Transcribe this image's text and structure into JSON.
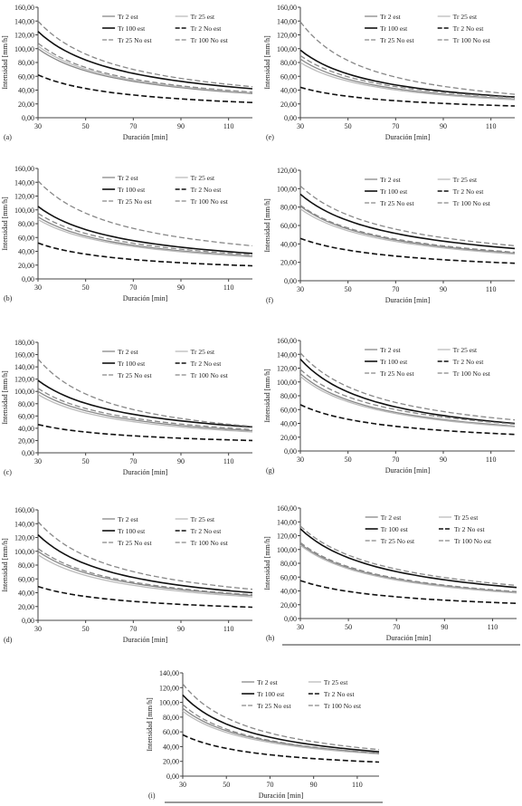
{
  "figure": {
    "legend": {
      "tr2": "Tr 2 est",
      "tr25": "Tr 25 est",
      "tr100": "Tr 100 est",
      "tr2no": "Tr 2 No est",
      "tr25no": "Tr 25 No est",
      "tr100no": "Tr 100 No est"
    },
    "xlabel": "Duración [min]",
    "ylabel": "Intensidad [mm/h]"
  },
  "chart_data": [
    {
      "panel_label": "(a)",
      "type": "line",
      "xlabel": "Duración [min]",
      "ylabel": "Intensidad [mm/h]",
      "xlim": [
        30,
        120
      ],
      "xticks": [
        30,
        50,
        70,
        90,
        110
      ],
      "ylim": [
        0,
        160
      ],
      "yticks": [
        "0,00",
        "20,00",
        "40,00",
        "60,00",
        "80,00",
        "100,00",
        "120,00",
        "140,00",
        "160,00"
      ],
      "x": [
        30,
        120
      ],
      "series": [
        {
          "name": "Tr 2 est",
          "values": [
            100,
            35
          ],
          "color": "#888888",
          "dash": "solid"
        },
        {
          "name": "Tr 25 est",
          "values": [
            104,
            36
          ],
          "color": "#bbbbbb",
          "dash": "solid"
        },
        {
          "name": "Tr 100 est",
          "values": [
            125,
            42
          ],
          "color": "#111111",
          "dash": "solid"
        },
        {
          "name": "Tr 2 No est",
          "values": [
            62,
            22
          ],
          "color": "#111111",
          "dash": "dashed"
        },
        {
          "name": "Tr 25 No est",
          "values": [
            108,
            37
          ],
          "color": "#888888",
          "dash": "dashed"
        },
        {
          "name": "Tr 100 No est",
          "values": [
            140,
            45
          ],
          "color": "#888888",
          "dash": "dashed"
        }
      ]
    },
    {
      "panel_label": "(b)",
      "type": "line",
      "xlabel": "Duración [min]",
      "ylabel": "Intensidad [mm/h]",
      "xlim": [
        30,
        120
      ],
      "xticks": [
        30,
        50,
        70,
        90,
        110
      ],
      "ylim": [
        0,
        160
      ],
      "yticks": [
        "0,00",
        "20,00",
        "40,00",
        "60,00",
        "80,00",
        "100,00",
        "120,00",
        "140,00",
        "160,00"
      ],
      "x": [
        30,
        120
      ],
      "series": [
        {
          "name": "Tr 2 est",
          "values": [
            90,
            33
          ],
          "color": "#888888",
          "dash": "solid"
        },
        {
          "name": "Tr 25 est",
          "values": [
            86,
            32
          ],
          "color": "#bbbbbb",
          "dash": "solid"
        },
        {
          "name": "Tr 100 est",
          "values": [
            105,
            37
          ],
          "color": "#111111",
          "dash": "solid"
        },
        {
          "name": "Tr 2 No est",
          "values": [
            52,
            19
          ],
          "color": "#111111",
          "dash": "dashed"
        },
        {
          "name": "Tr 25 No est",
          "values": [
            95,
            35
          ],
          "color": "#888888",
          "dash": "dashed"
        },
        {
          "name": "Tr 100 No est",
          "values": [
            142,
            48
          ],
          "color": "#888888",
          "dash": "dashed"
        }
      ]
    },
    {
      "panel_label": "(c)",
      "type": "line",
      "xlabel": "Duración [min]",
      "ylabel": "Intensidad [mm/h]",
      "xlim": [
        30,
        120
      ],
      "xticks": [
        30,
        50,
        70,
        90,
        110
      ],
      "ylim": [
        0,
        180
      ],
      "yticks": [
        "0,00",
        "20,00",
        "40,00",
        "60,00",
        "80,00",
        "100,00",
        "120,00",
        "140,00",
        "160,00",
        "180,00"
      ],
      "x": [
        30,
        120
      ],
      "series": [
        {
          "name": "Tr 2 est",
          "values": [
            100,
            36
          ],
          "color": "#888888",
          "dash": "solid"
        },
        {
          "name": "Tr 25 est",
          "values": [
            95,
            34
          ],
          "color": "#bbbbbb",
          "dash": "solid"
        },
        {
          "name": "Tr 100 est",
          "values": [
            118,
            42
          ],
          "color": "#111111",
          "dash": "solid"
        },
        {
          "name": "Tr 2 No est",
          "values": [
            46,
            20
          ],
          "color": "#111111",
          "dash": "dashed"
        },
        {
          "name": "Tr 25 No est",
          "values": [
            105,
            38
          ],
          "color": "#888888",
          "dash": "dashed"
        },
        {
          "name": "Tr 100 No est",
          "values": [
            153,
            43
          ],
          "color": "#888888",
          "dash": "dashed"
        }
      ]
    },
    {
      "panel_label": "(d)",
      "type": "line",
      "xlabel": "Duración [min]",
      "ylabel": "Intensidad [mm/h]",
      "xlim": [
        30,
        120
      ],
      "xticks": [
        30,
        50,
        70,
        90,
        110
      ],
      "ylim": [
        0,
        160
      ],
      "yticks": [
        "0,00",
        "20,00",
        "40,00",
        "60,00",
        "80,00",
        "100,00",
        "120,00",
        "140,00",
        "160,00"
      ],
      "x": [
        30,
        120
      ],
      "series": [
        {
          "name": "Tr 2 est",
          "values": [
            100,
            36
          ],
          "color": "#888888",
          "dash": "solid"
        },
        {
          "name": "Tr 25 est",
          "values": [
            95,
            34
          ],
          "color": "#bbbbbb",
          "dash": "solid"
        },
        {
          "name": "Tr 100 est",
          "values": [
            124,
            40
          ],
          "color": "#111111",
          "dash": "solid"
        },
        {
          "name": "Tr 2 No est",
          "values": [
            49,
            19
          ],
          "color": "#111111",
          "dash": "dashed"
        },
        {
          "name": "Tr 25 No est",
          "values": [
            104,
            37
          ],
          "color": "#888888",
          "dash": "dashed"
        },
        {
          "name": "Tr 100 No est",
          "values": [
            143,
            45
          ],
          "color": "#888888",
          "dash": "dashed"
        }
      ]
    },
    {
      "panel_label": "(e)",
      "type": "line",
      "xlabel": "Duración [min]",
      "ylabel": "Intensidad [mm/h]",
      "xlim": [
        30,
        120
      ],
      "xticks": [
        30,
        50,
        70,
        90,
        110
      ],
      "ylim": [
        0,
        160
      ],
      "yticks": [
        "0,00",
        "20,00",
        "40,00",
        "60,00",
        "80,00",
        "100,00",
        "120,00",
        "140,00",
        "160,00"
      ],
      "x": [
        30,
        120
      ],
      "series": [
        {
          "name": "Tr 2 est",
          "values": [
            85,
            27
          ],
          "color": "#888888",
          "dash": "solid"
        },
        {
          "name": "Tr 25 est",
          "values": [
            80,
            26
          ],
          "color": "#bbbbbb",
          "dash": "solid"
        },
        {
          "name": "Tr 100 est",
          "values": [
            98,
            30
          ],
          "color": "#111111",
          "dash": "solid"
        },
        {
          "name": "Tr 2 No est",
          "values": [
            44,
            17
          ],
          "color": "#111111",
          "dash": "dashed"
        },
        {
          "name": "Tr 25 No est",
          "values": [
            90,
            29
          ],
          "color": "#888888",
          "dash": "dashed"
        },
        {
          "name": "Tr 100 No est",
          "values": [
            139,
            34
          ],
          "color": "#888888",
          "dash": "dashed"
        }
      ]
    },
    {
      "panel_label": "(f)",
      "type": "line",
      "xlabel": "Duración [min]",
      "ylabel": "Intensidad [mm/h]",
      "xlim": [
        30,
        120
      ],
      "xticks": [
        30,
        50,
        70,
        90,
        110
      ],
      "ylim": [
        0,
        120
      ],
      "yticks": [
        "0,00",
        "20,00",
        "40,00",
        "60,00",
        "80,00",
        "100,00",
        "120,00"
      ],
      "x": [
        30,
        120
      ],
      "series": [
        {
          "name": "Tr 2 est",
          "values": [
            81,
            30
          ],
          "color": "#888888",
          "dash": "solid"
        },
        {
          "name": "Tr 25 est",
          "values": [
            78,
            29
          ],
          "color": "#bbbbbb",
          "dash": "solid"
        },
        {
          "name": "Tr 100 est",
          "values": [
            94,
            35
          ],
          "color": "#111111",
          "dash": "solid"
        },
        {
          "name": "Tr 2 No est",
          "values": [
            46,
            19
          ],
          "color": "#111111",
          "dash": "dashed"
        },
        {
          "name": "Tr 25 No est",
          "values": [
            82,
            31
          ],
          "color": "#888888",
          "dash": "dashed"
        },
        {
          "name": "Tr 100 No est",
          "values": [
            103,
            38
          ],
          "color": "#888888",
          "dash": "dashed"
        }
      ]
    },
    {
      "panel_label": "(g)",
      "type": "line",
      "xlabel": "Duración [min]",
      "ylabel": "Intensidad [mm/h]",
      "xlim": [
        30,
        120
      ],
      "xticks": [
        30,
        50,
        70,
        90,
        110
      ],
      "ylim": [
        0,
        160
      ],
      "yticks": [
        "0,00",
        "20,00",
        "40,00",
        "60,00",
        "80,00",
        "100,00",
        "120,00",
        "140,00",
        "160,00"
      ],
      "x": [
        30,
        120
      ],
      "series": [
        {
          "name": "Tr 2 est",
          "values": [
            112,
            36
          ],
          "color": "#888888",
          "dash": "solid"
        },
        {
          "name": "Tr 25 est",
          "values": [
            108,
            35
          ],
          "color": "#bbbbbb",
          "dash": "solid"
        },
        {
          "name": "Tr 100 est",
          "values": [
            133,
            40
          ],
          "color": "#111111",
          "dash": "solid"
        },
        {
          "name": "Tr 2 No est",
          "values": [
            67,
            24
          ],
          "color": "#111111",
          "dash": "dashed"
        },
        {
          "name": "Tr 25 No est",
          "values": [
            118,
            39
          ],
          "color": "#888888",
          "dash": "dashed"
        },
        {
          "name": "Tr 100 No est",
          "values": [
            142,
            45
          ],
          "color": "#888888",
          "dash": "dashed"
        }
      ]
    },
    {
      "panel_label": "(h)",
      "type": "line",
      "xlabel": "Duración [min]",
      "ylabel": "Intensidad [mm/h]",
      "xlim": [
        30,
        120
      ],
      "xticks": [
        30,
        50,
        70,
        90,
        110
      ],
      "ylim": [
        0,
        160
      ],
      "yticks": [
        "0,00",
        "20,00",
        "40,00",
        "60,00",
        "80,00",
        "100,00",
        "120,00",
        "140,00",
        "160,00"
      ],
      "x": [
        30,
        120
      ],
      "series": [
        {
          "name": "Tr 2 est",
          "values": [
            108,
            38
          ],
          "color": "#888888",
          "dash": "solid"
        },
        {
          "name": "Tr 25 est",
          "values": [
            106,
            37
          ],
          "color": "#bbbbbb",
          "dash": "solid"
        },
        {
          "name": "Tr 100 est",
          "values": [
            130,
            45
          ],
          "color": "#111111",
          "dash": "solid"
        },
        {
          "name": "Tr 2 No est",
          "values": [
            55,
            22
          ],
          "color": "#111111",
          "dash": "dashed"
        },
        {
          "name": "Tr 25 No est",
          "values": [
            110,
            39
          ],
          "color": "#888888",
          "dash": "dashed"
        },
        {
          "name": "Tr 100 No est",
          "values": [
            134,
            48
          ],
          "color": "#888888",
          "dash": "dashed"
        }
      ]
    },
    {
      "panel_label": "(i)",
      "type": "line",
      "xlabel": "Duración [min]",
      "ylabel": "Intensidad [mm/h]",
      "xlim": [
        30,
        120
      ],
      "xticks": [
        30,
        50,
        70,
        90,
        110
      ],
      "ylim": [
        0,
        140
      ],
      "yticks": [
        "0,00",
        "20,00",
        "40,00",
        "60,00",
        "80,00",
        "100,00",
        "120,00",
        "140,00"
      ],
      "x": [
        30,
        120
      ],
      "series": [
        {
          "name": "Tr 2 est",
          "values": [
            92,
            31
          ],
          "color": "#888888",
          "dash": "solid"
        },
        {
          "name": "Tr 25 est",
          "values": [
            88,
            30
          ],
          "color": "#bbbbbb",
          "dash": "solid"
        },
        {
          "name": "Tr 100 est",
          "values": [
            110,
            33
          ],
          "color": "#111111",
          "dash": "solid"
        },
        {
          "name": "Tr 2 No est",
          "values": [
            56,
            19
          ],
          "color": "#111111",
          "dash": "dashed"
        },
        {
          "name": "Tr 25 No est",
          "values": [
            97,
            31
          ],
          "color": "#888888",
          "dash": "dashed"
        },
        {
          "name": "Tr 100 No est",
          "values": [
            125,
            36
          ],
          "color": "#888888",
          "dash": "dashed"
        }
      ]
    }
  ]
}
